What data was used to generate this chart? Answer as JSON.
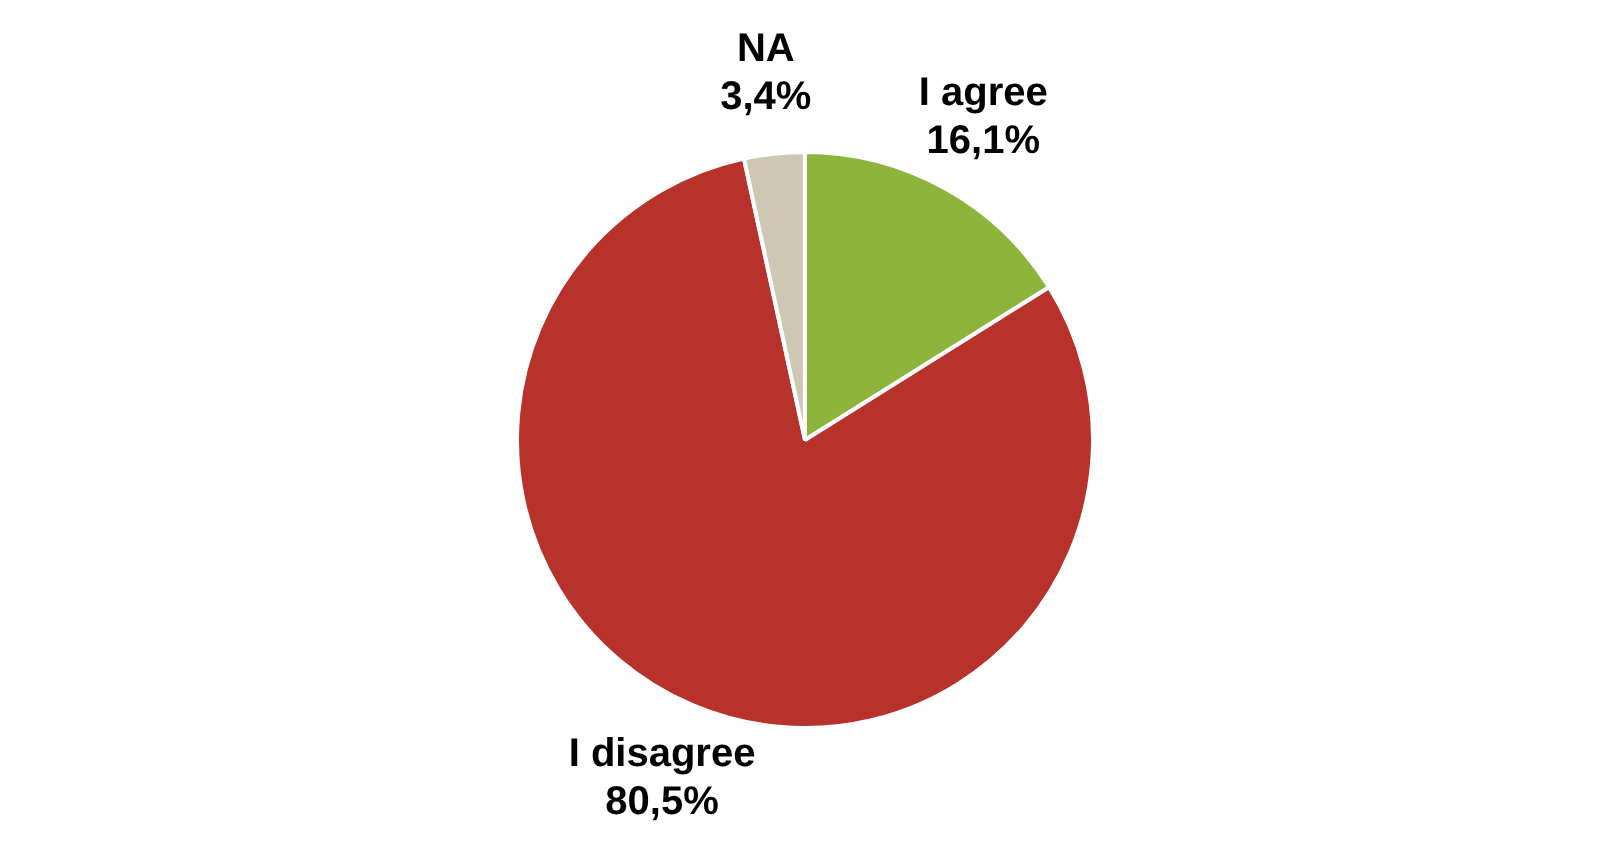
{
  "chart_data": {
    "type": "pie",
    "categories": [
      "I agree",
      "I disagree",
      "NA"
    ],
    "values": [
      16.1,
      80.5,
      3.4
    ],
    "value_labels": [
      "16,1%",
      "80,5%",
      "3,4%"
    ],
    "colors": [
      "#8db53c",
      "#b8322c",
      "#cdc7b4"
    ]
  }
}
